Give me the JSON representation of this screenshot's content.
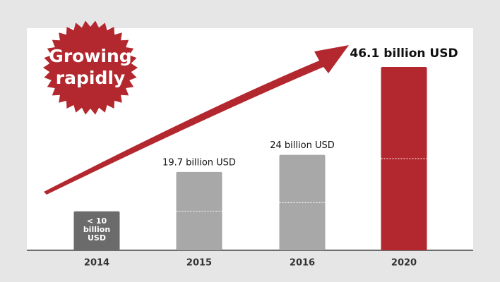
{
  "chart_data": {
    "type": "bar",
    "badge": [
      "Growing",
      "rapidly"
    ],
    "categories": [
      "2014",
      "2015",
      "2016",
      "2020"
    ],
    "values": [
      9.8,
      19.7,
      24,
      46.1
    ],
    "value_labels": [
      "< 10 billion USD",
      "19.7 billion USD",
      "24 billion USD",
      "46.1 billion USD"
    ],
    "colors": [
      "#6b6b6b",
      "#a8a8a8",
      "#a8a8a8",
      "#b3282f"
    ],
    "ylim": [
      0,
      50
    ]
  }
}
